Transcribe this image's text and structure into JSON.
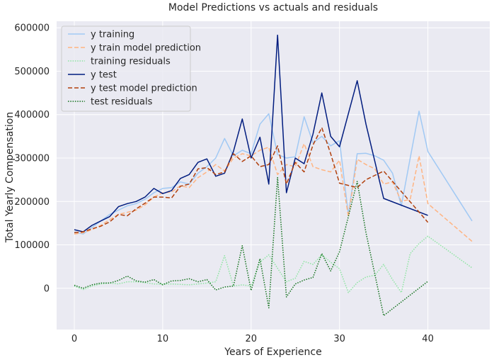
{
  "chart_data": {
    "type": "line",
    "title": "Model Predictions vs actuals and residuals",
    "xlabel": "Years of Experience",
    "ylabel": "Total Yearly Compensation",
    "xlim": [
      -2,
      47
    ],
    "ylim": [
      -95000,
      615000
    ],
    "x_ticks": [
      0,
      10,
      20,
      30,
      40
    ],
    "y_ticks": [
      0,
      100000,
      200000,
      300000,
      400000,
      500000,
      600000
    ],
    "x_tick_labels": [
      "0",
      "10",
      "20",
      "30",
      "40"
    ],
    "y_tick_labels": [
      "0",
      "100000",
      "200000",
      "300000",
      "400000",
      "500000",
      "600000"
    ],
    "grid": true,
    "legend_position": "top-left",
    "background": "#eaeaf2",
    "series": [
      {
        "name": "y training",
        "color": "#a1c9f4",
        "dash": "solid",
        "x": [
          0,
          1,
          2,
          3,
          4,
          5,
          6,
          7,
          8,
          9,
          10,
          11,
          12,
          13,
          14,
          15,
          16,
          17,
          18,
          19,
          20,
          21,
          22,
          23,
          24,
          25,
          26,
          27,
          28,
          29,
          30,
          31,
          32,
          33,
          34,
          35,
          36,
          37,
          38,
          39,
          40,
          45
        ],
        "y": [
          130000,
          125000,
          140000,
          155000,
          170000,
          180000,
          190000,
          195000,
          205000,
          220000,
          230000,
          232000,
          245000,
          240000,
          265000,
          280000,
          300000,
          345000,
          305000,
          318000,
          310000,
          378000,
          402000,
          308000,
          300000,
          303000,
          395000,
          335000,
          350000,
          328000,
          340000,
          170000,
          310000,
          311000,
          305000,
          295000,
          265000,
          190000,
          300000,
          408000,
          315000,
          155000
        ]
      },
      {
        "name": "y train model prediction",
        "color": "#ffb482",
        "dash": "dashed",
        "x": [
          0,
          1,
          2,
          3,
          4,
          5,
          6,
          7,
          8,
          9,
          10,
          11,
          12,
          13,
          14,
          15,
          16,
          17,
          18,
          19,
          20,
          21,
          22,
          23,
          24,
          25,
          26,
          27,
          28,
          29,
          30,
          31,
          32,
          33,
          34,
          35,
          36,
          37,
          38,
          39,
          40,
          45
        ],
        "y": [
          125000,
          128000,
          135000,
          145000,
          158000,
          170000,
          175000,
          180000,
          192000,
          210000,
          220000,
          222000,
          236000,
          232000,
          255000,
          268000,
          285000,
          270000,
          300000,
          310000,
          305000,
          318000,
          325000,
          262000,
          285000,
          280000,
          333000,
          280000,
          273000,
          268000,
          295000,
          165000,
          297000,
          285000,
          275000,
          240000,
          245000,
          200000,
          205000,
          305000,
          195000,
          108000
        ]
      },
      {
        "name": "training residuals",
        "color": "#8de5a1",
        "dash": "dotted",
        "x": [
          0,
          1,
          2,
          3,
          4,
          5,
          6,
          7,
          8,
          9,
          10,
          11,
          12,
          13,
          14,
          15,
          16,
          17,
          18,
          19,
          20,
          21,
          22,
          23,
          24,
          25,
          26,
          27,
          28,
          29,
          30,
          31,
          32,
          33,
          34,
          35,
          36,
          37,
          38,
          39,
          40,
          45
        ],
        "y": [
          5000,
          -3000,
          5000,
          10000,
          12000,
          10000,
          15000,
          15000,
          13000,
          10000,
          10000,
          10000,
          9000,
          8000,
          10000,
          12000,
          15000,
          75000,
          5000,
          8000,
          5000,
          60000,
          77000,
          46000,
          15000,
          23000,
          62000,
          55000,
          77000,
          60000,
          45000,
          -10000,
          13000,
          26000,
          30000,
          55000,
          20000,
          -10000,
          80000,
          103000,
          120000,
          47000
        ]
      },
      {
        "name": "y test",
        "color": "#001c7f",
        "dash": "solid",
        "x": [
          0,
          1,
          2,
          3,
          4,
          5,
          6,
          7,
          8,
          9,
          10,
          11,
          12,
          13,
          14,
          15,
          16,
          17,
          18,
          19,
          20,
          21,
          22,
          23,
          24,
          25,
          26,
          27,
          28,
          29,
          30,
          32,
          33,
          35,
          40
        ],
        "y": [
          135000,
          130000,
          145000,
          155000,
          165000,
          188000,
          195000,
          200000,
          210000,
          230000,
          218000,
          225000,
          253000,
          262000,
          290000,
          298000,
          258000,
          265000,
          315000,
          390000,
          300000,
          348000,
          240000,
          583000,
          220000,
          300000,
          287000,
          355000,
          450000,
          350000,
          326000,
          478000,
          378000,
          207000,
          168000
        ]
      },
      {
        "name": "y test model prediction",
        "color": "#b1400d",
        "dash": "dashed",
        "x": [
          0,
          1,
          2,
          3,
          4,
          5,
          6,
          7,
          8,
          9,
          10,
          11,
          12,
          13,
          14,
          15,
          16,
          17,
          18,
          19,
          20,
          21,
          22,
          23,
          24,
          25,
          26,
          27,
          28,
          29,
          30,
          32,
          33,
          35,
          40
        ],
        "y": [
          128000,
          130000,
          137000,
          143000,
          153000,
          170000,
          167000,
          183000,
          196000,
          210000,
          210000,
          208000,
          235000,
          240000,
          275000,
          278000,
          262000,
          268000,
          310000,
          292000,
          305000,
          280000,
          285000,
          328000,
          240000,
          290000,
          268000,
          330000,
          370000,
          310000,
          242000,
          232000,
          250000,
          270000,
          152000
        ]
      },
      {
        "name": "test residuals",
        "color": "#12711c",
        "dash": "dotted",
        "x": [
          0,
          1,
          2,
          3,
          4,
          5,
          6,
          7,
          8,
          9,
          10,
          11,
          12,
          13,
          14,
          15,
          16,
          17,
          18,
          19,
          20,
          21,
          22,
          23,
          24,
          25,
          26,
          27,
          28,
          29,
          30,
          32,
          33,
          35,
          40
        ],
        "y": [
          7000,
          0,
          8000,
          12000,
          12000,
          18000,
          28000,
          17000,
          14000,
          20000,
          8000,
          17000,
          18000,
          22000,
          15000,
          20000,
          -4000,
          3000,
          5000,
          98000,
          -5000,
          68000,
          -45000,
          255000,
          -20000,
          10000,
          19000,
          25000,
          80000,
          40000,
          84000,
          246000,
          128000,
          -63000,
          16000
        ]
      }
    ]
  }
}
